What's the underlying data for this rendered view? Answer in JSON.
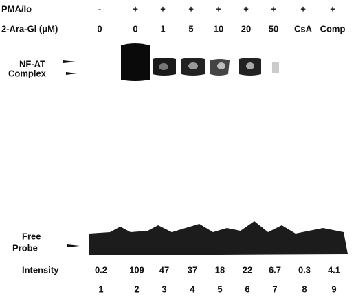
{
  "rows": [
    {
      "label": "PMA/Io",
      "values": [
        "-",
        "+",
        "+",
        "+",
        "+",
        "+",
        "+",
        "+",
        "+"
      ]
    },
    {
      "label": "2-Ara-Gl (μM)",
      "values": [
        "0",
        "0",
        "1",
        "5",
        "10",
        "20",
        "50",
        "CsA",
        "Comp"
      ]
    }
  ],
  "complex_label": [
    "NF-AT",
    "Complex"
  ],
  "probe_label": [
    "Free",
    "Probe"
  ],
  "intensity": {
    "label": "Intensity",
    "values": [
      0.2,
      109,
      47,
      37,
      18,
      22,
      6.7,
      0.3,
      4.1
    ]
  },
  "lanes": [
    1,
    2,
    3,
    4,
    5,
    6,
    7,
    8,
    9
  ]
}
